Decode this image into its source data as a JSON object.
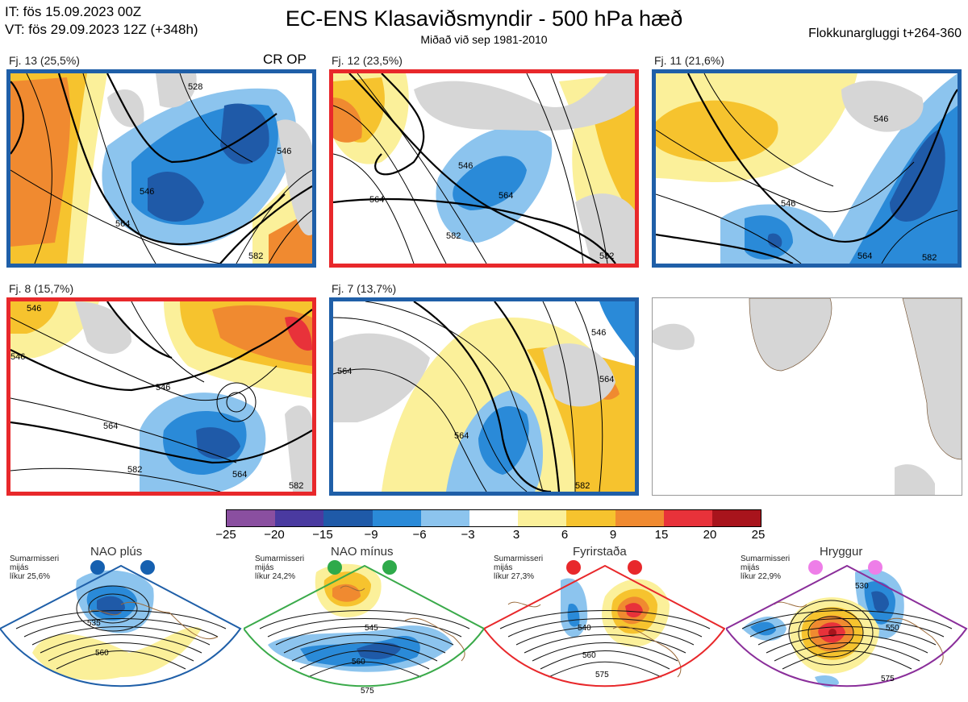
{
  "header": {
    "init_time": "IT: fös 15.09.2023 00Z",
    "valid_time": "VT: fös 29.09.2023 12Z  (+348h)",
    "title": "EC-ENS Klasaviðsmyndir - 500 hPa hæð",
    "subtitle": "Miðað við sep 1981-2010",
    "window": "Flokkunargluggi t+264-360"
  },
  "panels": [
    {
      "label": "Fj. 13 (25,5%)",
      "extra": "CR OP",
      "border": "#1f5fa8",
      "contours": [
        "528",
        "546",
        "546",
        "564",
        "582"
      ]
    },
    {
      "label": "Fj. 12 (23,5%)",
      "border": "#e8282b",
      "contours": [
        "546",
        "564",
        "564",
        "582",
        "582"
      ]
    },
    {
      "label": "Fj. 11 (21,6%)",
      "border": "#1f5fa8",
      "contours": [
        "546",
        "546",
        "564",
        "582"
      ]
    },
    {
      "label": "Fj. 8 (15,7%)",
      "border": "#e8282b",
      "contours": [
        "546",
        "546",
        "546",
        "564",
        "564",
        "582",
        "582"
      ]
    },
    {
      "label": "Fj. 7 (13,7%)",
      "border": "#1f5fa8",
      "contours": [
        "546",
        "564",
        "564",
        "564",
        "582"
      ]
    }
  ],
  "colorbar": {
    "colors": [
      "#8a4fa0",
      "#4a3aa0",
      "#1f5aa8",
      "#2a8ad8",
      "#8cc4ee",
      "#ffffff",
      "#fbf09a",
      "#f6c32e",
      "#f08a30",
      "#e8323a",
      "#a8141c"
    ],
    "labels": [
      "−25",
      "−20",
      "−15",
      "−9",
      "−6",
      "−3",
      "3",
      "6",
      "9",
      "15",
      "20",
      "25"
    ]
  },
  "regimes": [
    {
      "name": "NAO plús",
      "note": [
        "Sumarmisseri",
        "mijás",
        "líkur 25,6%"
      ],
      "color": "#1f5fa8",
      "dot": "#1560b0",
      "contours": [
        "535",
        "560"
      ]
    },
    {
      "name": "NAO mínus",
      "note": [
        "Sumarmisseri",
        "mijás",
        "líkur 24,2%"
      ],
      "color": "#3aaa4a",
      "dot": "#2eaa4a",
      "contours": [
        "545",
        "560",
        "575"
      ]
    },
    {
      "name": "Fyrirstaða",
      "note": [
        "Sumarmisseri",
        "mijás",
        "líkur 27,3%"
      ],
      "color": "#e8282b",
      "dot": "#e8282b",
      "contours": [
        "540",
        "560",
        "575"
      ]
    },
    {
      "name": "Hryggur",
      "note": [
        "Sumarmisseri",
        "mijás",
        "líkur 22,9%"
      ],
      "color": "#8a2e9a",
      "dot": "#ee7ee8",
      "contours": [
        "530",
        "550",
        "575"
      ]
    }
  ]
}
